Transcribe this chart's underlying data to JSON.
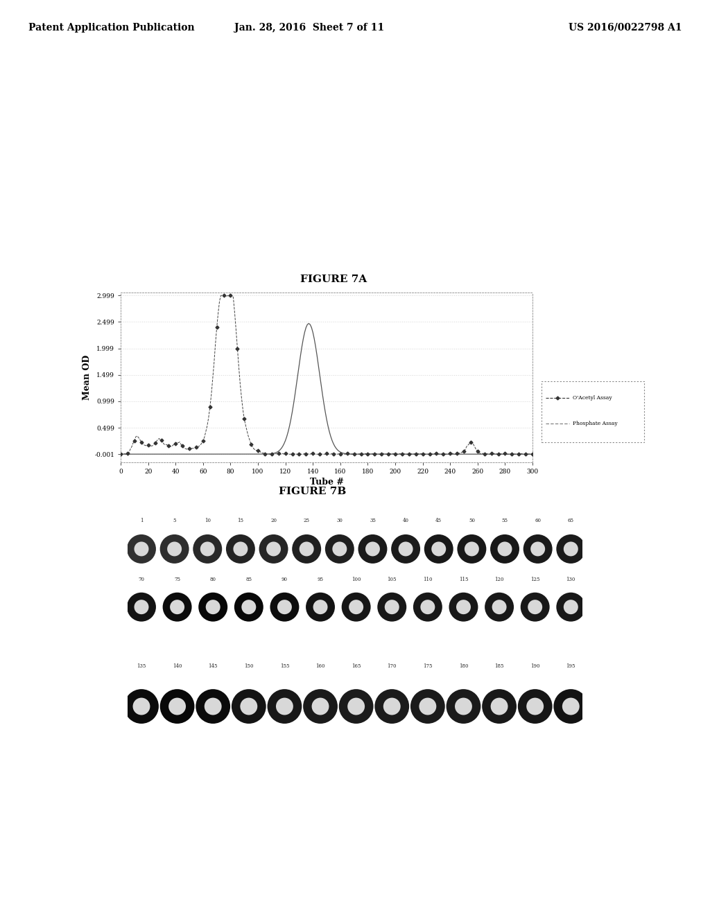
{
  "header_left": "Patent Application Publication",
  "header_center": "Jan. 28, 2016  Sheet 7 of 11",
  "header_right": "US 2016/0022798 A1",
  "fig7a_title": "FIGURE 7A",
  "fig7b_title": "FIGURE 7B",
  "xlabel": "Tube #",
  "ylabel": "Mean OD",
  "ytick_labels": [
    "-0.001",
    "0.499",
    "0.999",
    "1.499",
    "1.999",
    "2.499",
    "2.999"
  ],
  "ytick_vals": [
    -0.001,
    0.499,
    0.999,
    1.499,
    1.999,
    2.499,
    2.999
  ],
  "xticks": [
    0,
    20,
    40,
    60,
    80,
    100,
    120,
    140,
    160,
    180,
    200,
    220,
    240,
    260,
    280,
    300
  ],
  "xlim": [
    0,
    300
  ],
  "ylim_low": -0.15,
  "ylim_high": 3.05,
  "legend_line1": "O'Acetyl Assay",
  "legend_line2": "Phosphate Assay",
  "row1_labels": [
    "1",
    "5",
    "10",
    "15",
    "20",
    "25",
    "30",
    "35",
    "40",
    "45",
    "50",
    "55",
    "60",
    "65"
  ],
  "row2_labels": [
    "70",
    "75",
    "80",
    "85",
    "90",
    "95",
    "100",
    "105",
    "110",
    "115",
    "120",
    "125",
    "130"
  ],
  "row3_labels": [
    "135",
    "140",
    "145",
    "150",
    "155",
    "160",
    "165",
    "170",
    "175",
    "180",
    "185",
    "190",
    "195"
  ]
}
